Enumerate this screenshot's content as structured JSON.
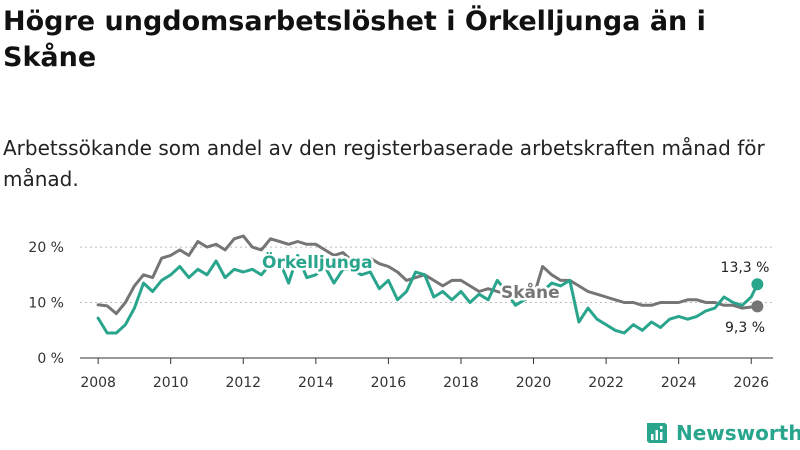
{
  "title": "Högre ungdomsarbetslöshet i Örkelljunga än i Skåne",
  "subtitle": "Arbetssökande som andel av den registerbaserade arbetskraften månad för månad.",
  "brand": {
    "name": "Newsworthy",
    "color": "#2aa58d"
  },
  "chart_data": {
    "type": "line",
    "title": "Högre ungdomsarbetslöshet i Örkelljunga än i Skåne",
    "xlabel": "",
    "ylabel": "",
    "xlim": [
      2007.5,
      2026.6
    ],
    "ylim": [
      0,
      22
    ],
    "y_ticks": [
      {
        "value": 0,
        "label": "0 %"
      },
      {
        "value": 10,
        "label": "10 %"
      },
      {
        "value": 20,
        "label": "20 %"
      }
    ],
    "x_ticks": [
      {
        "value": 2008,
        "label": "2008"
      },
      {
        "value": 2010,
        "label": "2010"
      },
      {
        "value": 2012,
        "label": "2012"
      },
      {
        "value": 2014,
        "label": "2014"
      },
      {
        "value": 2016,
        "label": "2016"
      },
      {
        "value": 2018,
        "label": "2018"
      },
      {
        "value": 2020,
        "label": "2020"
      },
      {
        "value": 2022,
        "label": "2022"
      },
      {
        "value": 2024,
        "label": "2024"
      },
      {
        "value": 2026,
        "label": "2026"
      }
    ],
    "series": [
      {
        "name": "Skåne",
        "label": "Skåne",
        "color": "#757575",
        "end_label": "9,3 %",
        "x": [
          2008.0,
          2008.25,
          2008.5,
          2008.75,
          2009.0,
          2009.25,
          2009.5,
          2009.75,
          2010.0,
          2010.25,
          2010.5,
          2010.75,
          2011.0,
          2011.25,
          2011.5,
          2011.75,
          2012.0,
          2012.25,
          2012.5,
          2012.75,
          2013.0,
          2013.25,
          2013.5,
          2013.75,
          2014.0,
          2014.25,
          2014.5,
          2014.75,
          2015.0,
          2015.25,
          2015.5,
          2015.75,
          2016.0,
          2016.25,
          2016.5,
          2016.75,
          2017.0,
          2017.25,
          2017.5,
          2017.75,
          2018.0,
          2018.25,
          2018.5,
          2018.75,
          2019.0,
          2019.25,
          2019.5,
          2019.75,
          2020.0,
          2020.25,
          2020.5,
          2020.75,
          2021.0,
          2021.25,
          2021.5,
          2021.75,
          2022.0,
          2022.25,
          2022.5,
          2022.75,
          2023.0,
          2023.25,
          2023.5,
          2023.75,
          2024.0,
          2024.25,
          2024.5,
          2024.75,
          2025.0,
          2025.25,
          2025.5,
          2025.75,
          2026.0,
          2026.17
        ],
        "values": [
          9.6,
          9.4,
          8.0,
          10.0,
          13.0,
          15.0,
          14.5,
          18.0,
          18.5,
          19.5,
          18.5,
          21.0,
          20.0,
          20.5,
          19.5,
          21.5,
          22.0,
          20.0,
          19.5,
          21.5,
          21.0,
          20.5,
          21.0,
          20.5,
          20.5,
          19.5,
          18.5,
          19.0,
          17.5,
          17.0,
          18.0,
          17.0,
          16.5,
          15.5,
          14.0,
          14.5,
          15.0,
          14.0,
          13.0,
          14.0,
          14.0,
          13.0,
          12.0,
          12.5,
          12.0,
          11.5,
          11.0,
          11.0,
          11.0,
          16.5,
          15.0,
          14.0,
          14.0,
          13.0,
          12.0,
          11.5,
          11.0,
          10.5,
          10.0,
          10.0,
          9.5,
          9.5,
          10.0,
          10.0,
          10.0,
          10.5,
          10.5,
          10.0,
          10.0,
          9.5,
          9.5,
          9.0,
          9.2,
          9.3
        ]
      },
      {
        "name": "Örkelljunga",
        "label": "Örkelljunga",
        "color": "#2aa58d",
        "end_label": "13,3 %",
        "x": [
          2008.0,
          2008.25,
          2008.5,
          2008.75,
          2009.0,
          2009.25,
          2009.5,
          2009.75,
          2010.0,
          2010.25,
          2010.5,
          2010.75,
          2011.0,
          2011.25,
          2011.5,
          2011.75,
          2012.0,
          2012.25,
          2012.5,
          2012.75,
          2013.0,
          2013.25,
          2013.5,
          2013.75,
          2014.0,
          2014.25,
          2014.5,
          2014.75,
          2015.0,
          2015.25,
          2015.5,
          2015.75,
          2016.0,
          2016.25,
          2016.5,
          2016.75,
          2017.0,
          2017.25,
          2017.5,
          2017.75,
          2018.0,
          2018.25,
          2018.5,
          2018.75,
          2019.0,
          2019.25,
          2019.5,
          2019.75,
          2020.0,
          2020.25,
          2020.5,
          2020.75,
          2021.0,
          2021.25,
          2021.5,
          2021.75,
          2022.0,
          2022.25,
          2022.5,
          2022.75,
          2023.0,
          2023.25,
          2023.5,
          2023.75,
          2024.0,
          2024.25,
          2024.5,
          2024.75,
          2025.0,
          2025.25,
          2025.5,
          2025.75,
          2026.0,
          2026.17
        ],
        "values": [
          7.2,
          4.5,
          4.5,
          6.0,
          9.0,
          13.5,
          12.0,
          14.0,
          15.0,
          16.5,
          14.5,
          16.0,
          15.0,
          17.5,
          14.5,
          16.0,
          15.5,
          16.0,
          15.0,
          17.0,
          17.5,
          13.5,
          18.5,
          14.5,
          15.0,
          16.5,
          13.5,
          16.0,
          16.0,
          15.0,
          15.5,
          12.5,
          14.0,
          10.5,
          12.0,
          15.5,
          15.0,
          11.0,
          12.0,
          10.5,
          12.0,
          10.0,
          11.5,
          10.5,
          14.0,
          12.0,
          9.5,
          10.5,
          11.0,
          12.0,
          13.5,
          13.0,
          14.0,
          6.5,
          9.0,
          7.0,
          6.0,
          5.0,
          4.5,
          6.0,
          5.0,
          6.5,
          5.5,
          7.0,
          7.5,
          7.0,
          7.5,
          8.5,
          9.0,
          11.0,
          10.0,
          9.5,
          11.0,
          13.3
        ]
      }
    ]
  }
}
